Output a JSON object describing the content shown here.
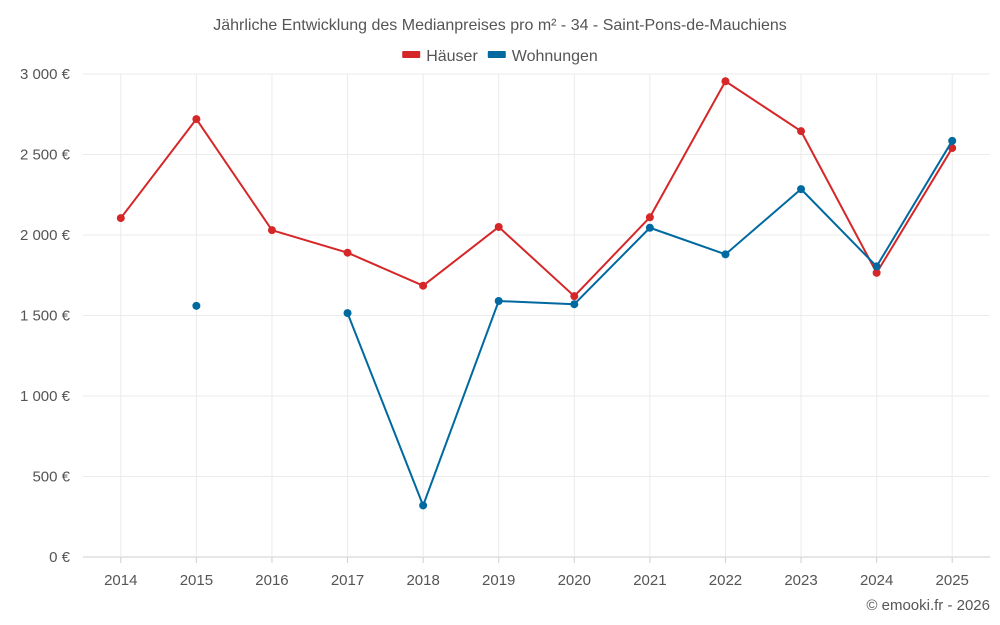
{
  "chart_data": {
    "type": "line",
    "title": "Jährliche Entwicklung des Medianpreises pro m² - 34 - Saint-Pons-de-Mauchiens",
    "categories": [
      "2014",
      "2015",
      "2016",
      "2017",
      "2018",
      "2019",
      "2020",
      "2021",
      "2022",
      "2023",
      "2024",
      "2025"
    ],
    "ylim": [
      0,
      3000
    ],
    "yticks": [
      0,
      500,
      1000,
      1500,
      2000,
      2500,
      3000
    ],
    "ytick_labels": [
      "0 €",
      "500 €",
      "1 000 €",
      "1 500 €",
      "2 000 €",
      "2 500 €",
      "3 000 €"
    ],
    "legend_position": "top-center",
    "grid": true,
    "series": [
      {
        "name": "Häuser",
        "color": "#d62728",
        "values": [
          2105,
          2720,
          2030,
          1890,
          1685,
          2050,
          1620,
          2110,
          2955,
          2645,
          1765,
          2540
        ]
      },
      {
        "name": "Wohnungen",
        "color": "#0069a0",
        "values": [
          null,
          1560,
          null,
          1515,
          320,
          1590,
          1570,
          2045,
          1880,
          2285,
          1805,
          2585
        ]
      }
    ],
    "credit": "© emooki.fr - 2026"
  }
}
